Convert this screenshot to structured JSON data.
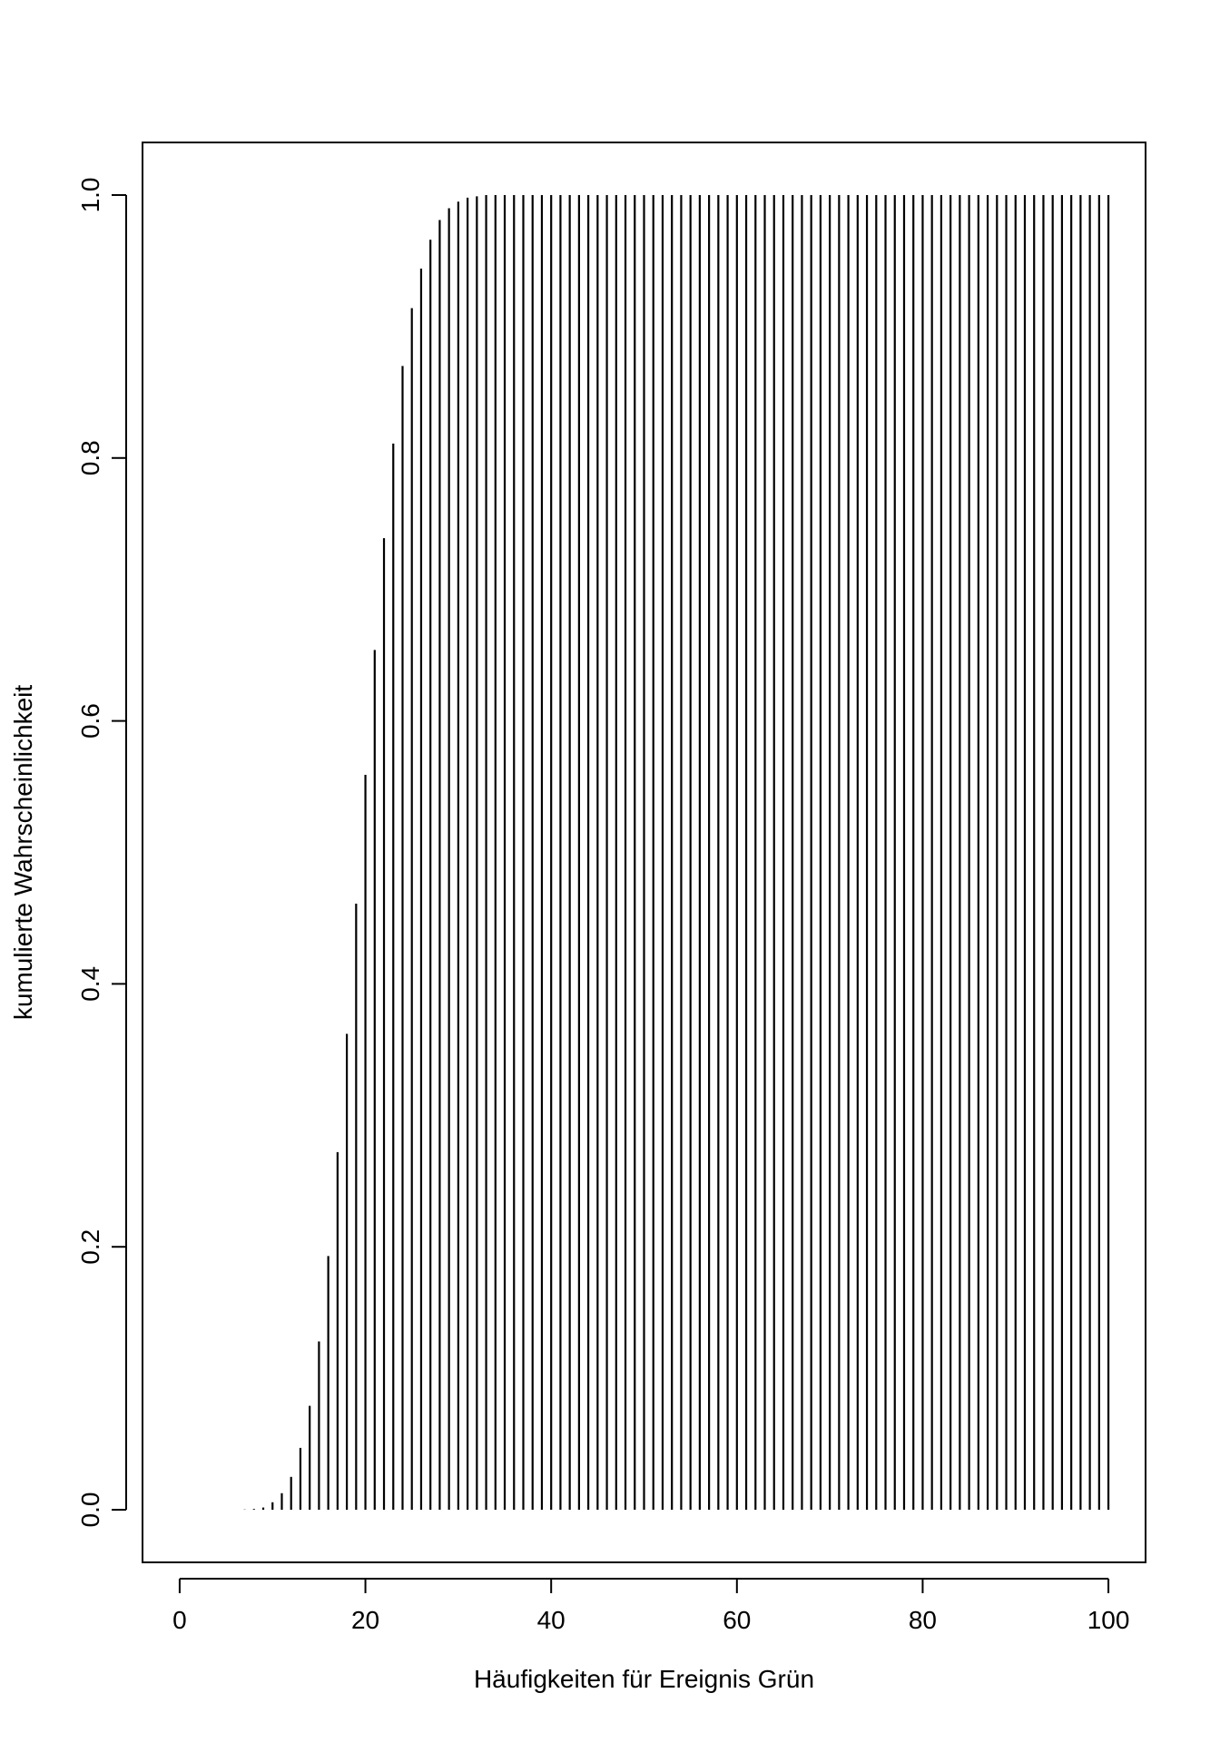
{
  "chart_data": {
    "type": "bar",
    "style": "vertical-lines",
    "xlabel": "Häufigkeiten für Ereignis Grün",
    "ylabel": "kumulierte Wahrscheinlichkeit",
    "xlim": [
      -4,
      104
    ],
    "ylim": [
      -0.04,
      1.04
    ],
    "x_ticks": [
      0,
      20,
      40,
      60,
      80,
      100
    ],
    "x_tick_labels": [
      "0",
      "20",
      "40",
      "60",
      "80",
      "100"
    ],
    "y_ticks": [
      0.0,
      0.2,
      0.4,
      0.6,
      0.8,
      1.0
    ],
    "y_tick_labels": [
      "0.0",
      "0.2",
      "0.4",
      "0.6",
      "0.8",
      "1.0"
    ],
    "grid": false,
    "legend": "none",
    "line_color": "#000000",
    "x": [
      0,
      1,
      2,
      3,
      4,
      5,
      6,
      7,
      8,
      9,
      10,
      11,
      12,
      13,
      14,
      15,
      16,
      17,
      18,
      19,
      20,
      21,
      22,
      23,
      24,
      25,
      26,
      27,
      28,
      29,
      30,
      31,
      32,
      33,
      34,
      35,
      36,
      37,
      38,
      39,
      40,
      41,
      42,
      43,
      44,
      45,
      46,
      47,
      48,
      49,
      50,
      51,
      52,
      53,
      54,
      55,
      56,
      57,
      58,
      59,
      60,
      61,
      62,
      63,
      64,
      65,
      66,
      67,
      68,
      69,
      70,
      71,
      72,
      73,
      74,
      75,
      76,
      77,
      78,
      79,
      80,
      81,
      82,
      83,
      84,
      85,
      86,
      87,
      88,
      89,
      90,
      91,
      92,
      93,
      94,
      95,
      96,
      97,
      98,
      99,
      100
    ],
    "values": [
      0,
      0,
      0,
      0,
      0,
      0,
      0,
      0.0002,
      0.0006,
      0.0017,
      0.0057,
      0.0126,
      0.025,
      0.047,
      0.079,
      0.128,
      0.193,
      0.272,
      0.362,
      0.461,
      0.559,
      0.654,
      0.739,
      0.811,
      0.87,
      0.914,
      0.944,
      0.966,
      0.981,
      0.99,
      0.995,
      0.998,
      0.999,
      1,
      1,
      1,
      1,
      1,
      1,
      1,
      1,
      1,
      1,
      1,
      1,
      1,
      1,
      1,
      1,
      1,
      1,
      1,
      1,
      1,
      1,
      1,
      1,
      1,
      1,
      1,
      1,
      1,
      1,
      1,
      1,
      1,
      1,
      1,
      1,
      1,
      1,
      1,
      1,
      1,
      1,
      1,
      1,
      1,
      1,
      1,
      1,
      1,
      1,
      1,
      1,
      1,
      1,
      1,
      1,
      1,
      1,
      1,
      1,
      1,
      1,
      1,
      1,
      1,
      1,
      1,
      1
    ]
  }
}
